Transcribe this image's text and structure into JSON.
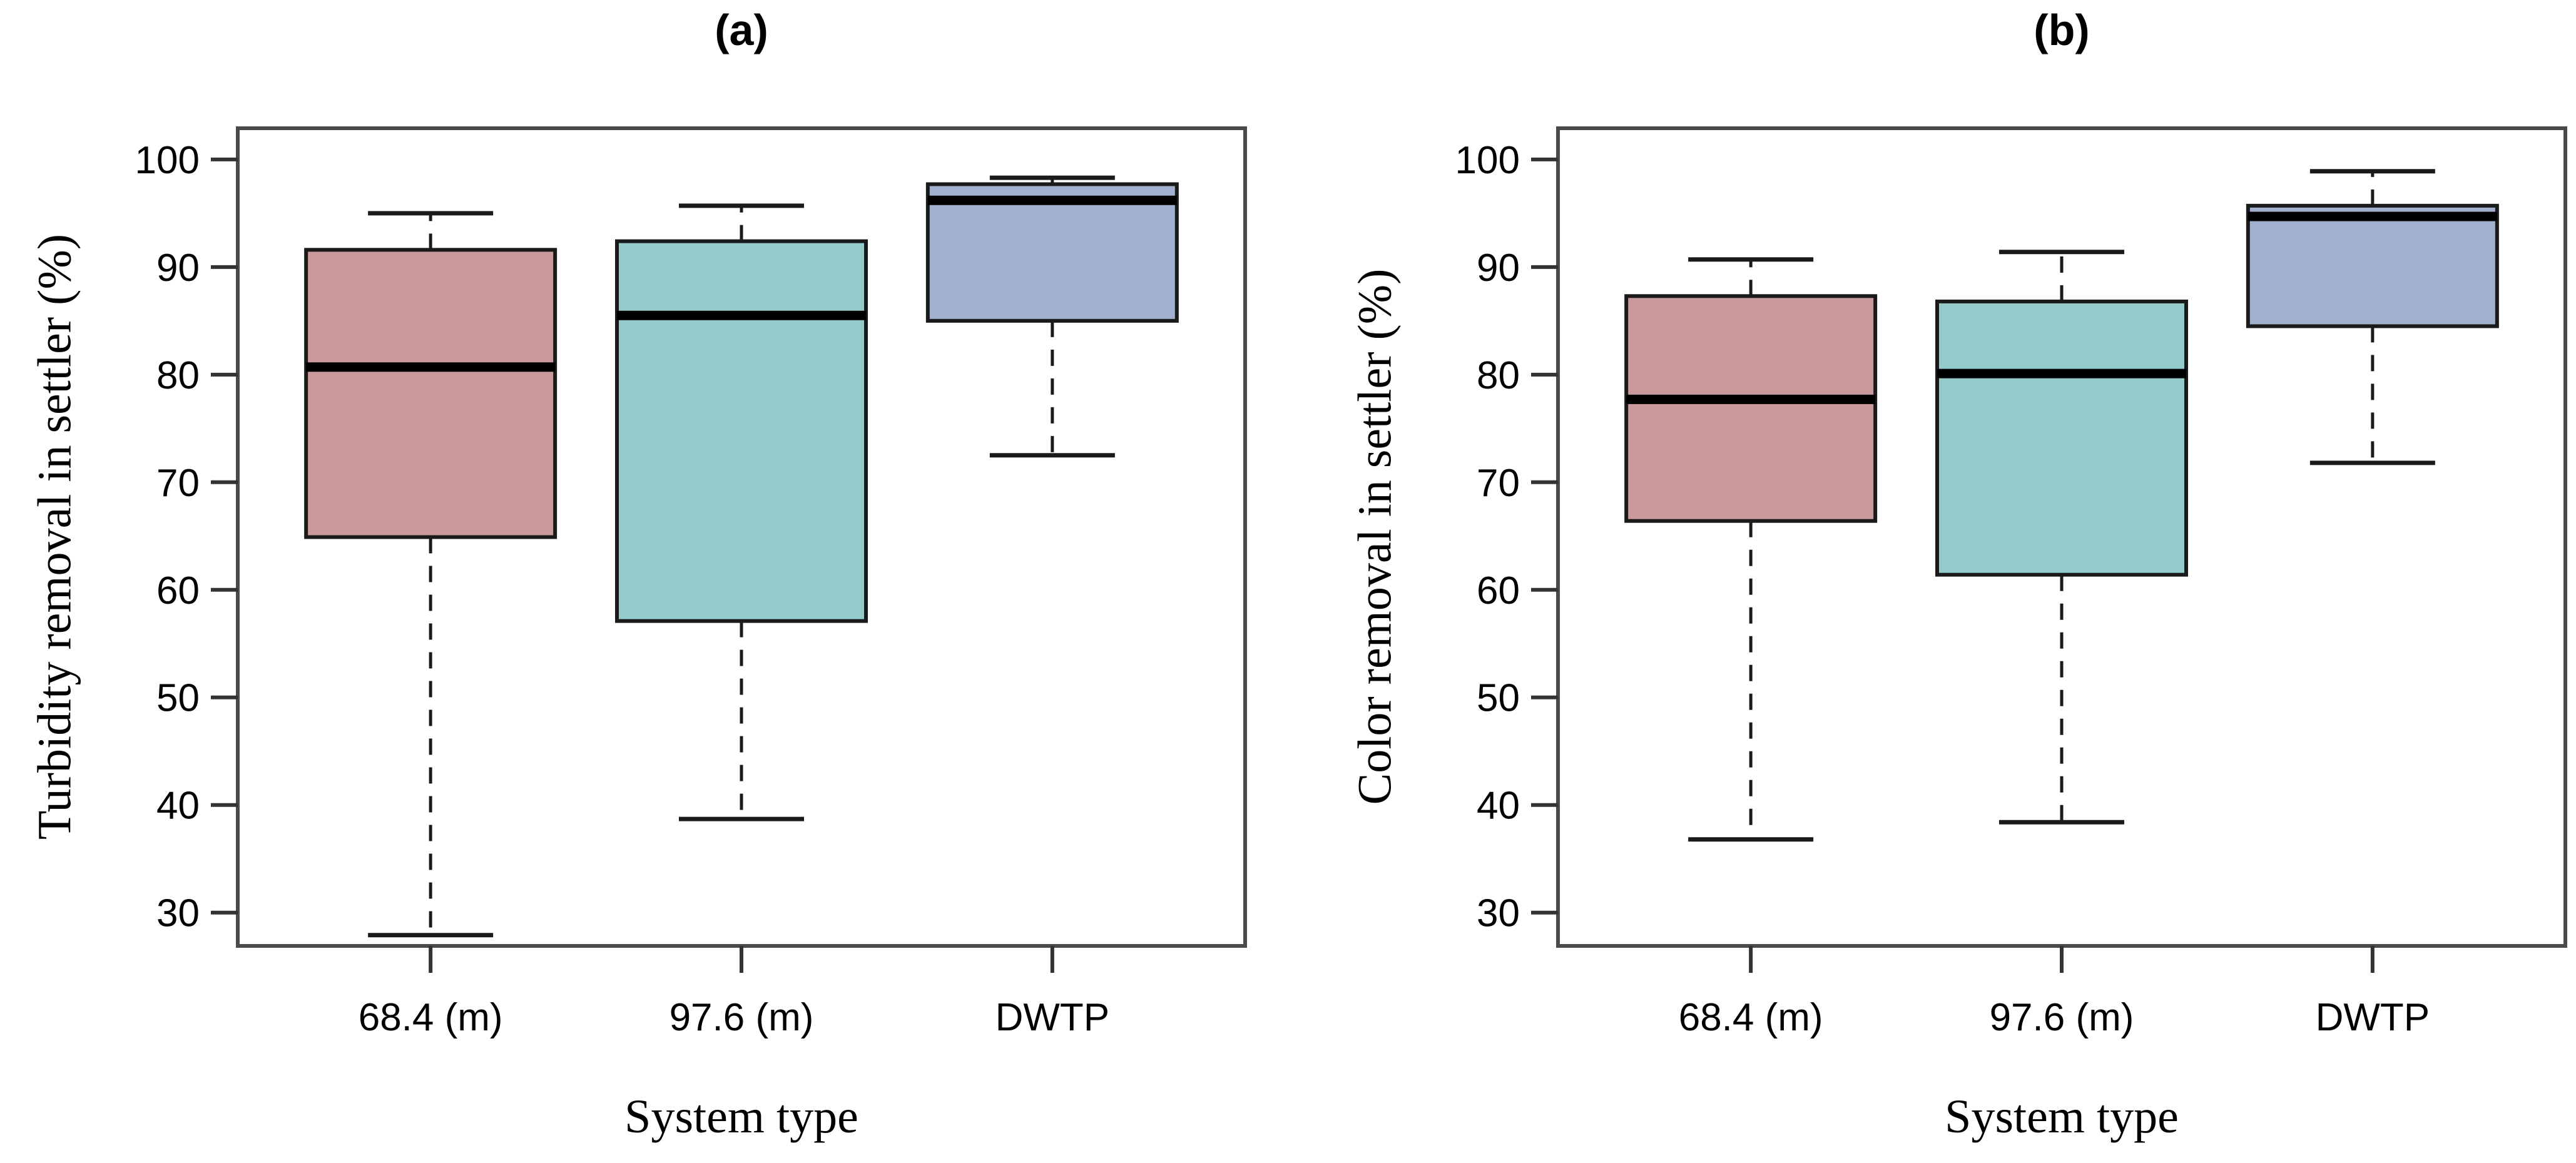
{
  "page": {
    "background": "#ffffff",
    "description_note": ""
  },
  "style": {
    "plot_border_color": "#4a4a4a",
    "box_border_color": "#1a1a1a",
    "median_color": "#000000",
    "whisker_color": "#1a1a1a",
    "tick_color": "#333333",
    "text_color": "#000000"
  },
  "chart_data": [
    {
      "type": "boxplot",
      "title": "(a)",
      "xlabel": "System type",
      "ylabel": "Turbidity removal in settler (%)",
      "categories": [
        "68.4 (m)",
        "97.6 (m)",
        "DWTP"
      ],
      "yticks": [
        30,
        40,
        50,
        60,
        70,
        80,
        90,
        100
      ],
      "ylim": [
        26.9,
        102.9
      ],
      "grid": false,
      "legend": "none",
      "series": [
        {
          "category": "68.4 (m)",
          "whisker_low": 27.9,
          "q1": 64.9,
          "median": 80.7,
          "q3": 91.6,
          "whisker_high": 95.0,
          "fill": "#CA999C"
        },
        {
          "category": "97.6 (m)",
          "whisker_low": 38.7,
          "q1": 57.1,
          "median": 85.5,
          "q3": 92.4,
          "whisker_high": 95.7,
          "fill": "#95CCCB"
        },
        {
          "category": "DWTP",
          "whisker_low": 72.5,
          "q1": 85.0,
          "median": 96.2,
          "q3": 97.7,
          "whisker_high": 98.3,
          "fill": "#A1B1CD"
        }
      ]
    },
    {
      "type": "boxplot",
      "title": "(b)",
      "xlabel": "System type",
      "ylabel": "Color removal in settler (%)",
      "categories": [
        "68.4 (m)",
        "97.6 (m)",
        "DWTP"
      ],
      "yticks": [
        30,
        40,
        50,
        60,
        70,
        80,
        90,
        100
      ],
      "ylim": [
        26.9,
        102.9
      ],
      "grid": false,
      "legend": "none",
      "series": [
        {
          "category": "68.4 (m)",
          "whisker_low": 36.8,
          "q1": 66.4,
          "median": 77.7,
          "q3": 87.3,
          "whisker_high": 90.7,
          "fill": "#CA999C"
        },
        {
          "category": "97.6 (m)",
          "whisker_low": 38.4,
          "q1": 61.4,
          "median": 80.1,
          "q3": 86.8,
          "whisker_high": 91.4,
          "fill": "#95CCCB"
        },
        {
          "category": "DWTP",
          "whisker_low": 71.8,
          "q1": 84.5,
          "median": 94.7,
          "q3": 95.7,
          "whisker_high": 98.9,
          "fill": "#A1B1CD"
        }
      ]
    }
  ]
}
